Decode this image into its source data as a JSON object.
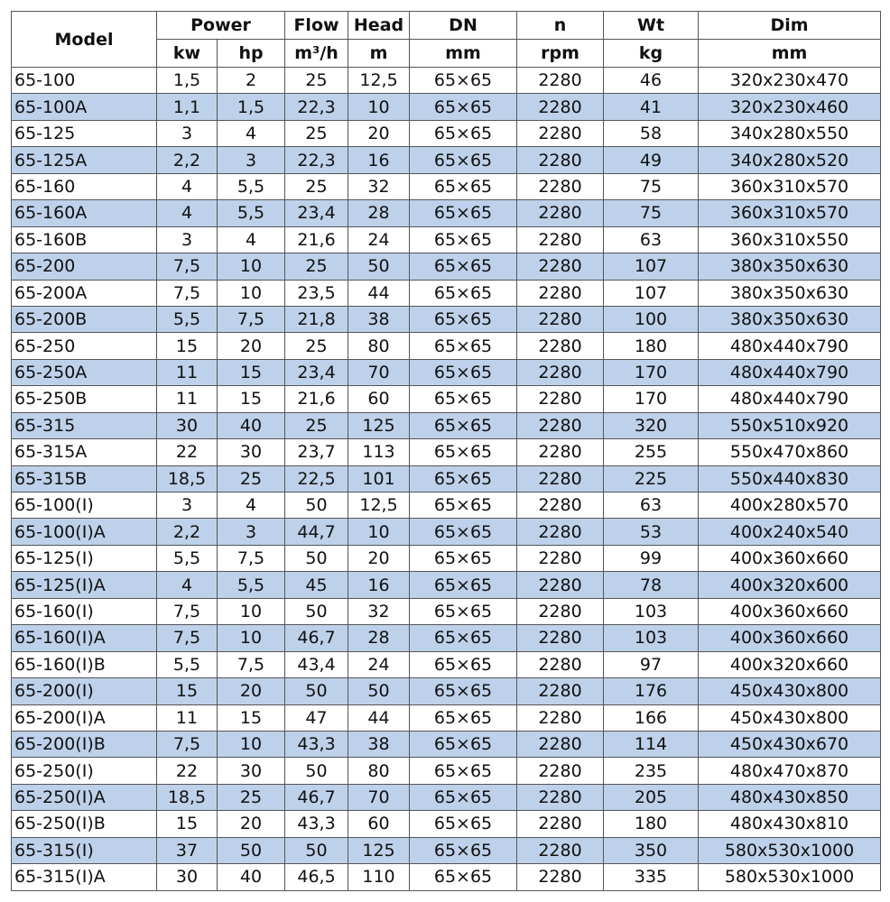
{
  "table": {
    "headers": [
      [
        "Model",
        "Power",
        "Flow",
        "Head",
        "DN",
        "n",
        "Wt",
        "Dim"
      ],
      [
        "kw",
        "hp",
        "m³/h",
        "m",
        "mm",
        "rpm",
        "kg",
        "mm"
      ]
    ],
    "rows": [
      [
        "65-100",
        "1,5",
        "2",
        "25",
        "12,5",
        "65×65",
        "2280",
        "46",
        "320x230x470"
      ],
      [
        "65-100A",
        "1,1",
        "1,5",
        "22,3",
        "10",
        "65×65",
        "2280",
        "41",
        "320x230x460"
      ],
      [
        "65-125",
        "3",
        "4",
        "25",
        "20",
        "65×65",
        "2280",
        "58",
        "340x280x550"
      ],
      [
        "65-125A",
        "2,2",
        "3",
        "22,3",
        "16",
        "65×65",
        "2280",
        "49",
        "340x280x520"
      ],
      [
        "65-160",
        "4",
        "5,5",
        "25",
        "32",
        "65×65",
        "2280",
        "75",
        "360x310x570"
      ],
      [
        "65-160A",
        "4",
        "5,5",
        "23,4",
        "28",
        "65×65",
        "2280",
        "75",
        "360x310x570"
      ],
      [
        "65-160B",
        "3",
        "4",
        "21,6",
        "24",
        "65×65",
        "2280",
        "63",
        "360x310x550"
      ],
      [
        "65-200",
        "7,5",
        "10",
        "25",
        "50",
        "65×65",
        "2280",
        "107",
        "380x350x630"
      ],
      [
        "65-200A",
        "7,5",
        "10",
        "23,5",
        "44",
        "65×65",
        "2280",
        "107",
        "380x350x630"
      ],
      [
        "65-200B",
        "5,5",
        "7,5",
        "21,8",
        "38",
        "65×65",
        "2280",
        "100",
        "380x350x630"
      ],
      [
        "65-250",
        "15",
        "20",
        "25",
        "80",
        "65×65",
        "2280",
        "180",
        "480x440x790"
      ],
      [
        "65-250A",
        "11",
        "15",
        "23,4",
        "70",
        "65×65",
        "2280",
        "170",
        "480x440x790"
      ],
      [
        "65-250B",
        "11",
        "15",
        "21,6",
        "60",
        "65×65",
        "2280",
        "170",
        "480x440x790"
      ],
      [
        "65-315",
        "30",
        "40",
        "25",
        "125",
        "65×65",
        "2280",
        "320",
        "550x510x920"
      ],
      [
        "65-315A",
        "22",
        "30",
        "23,7",
        "113",
        "65×65",
        "2280",
        "255",
        "550x470x860"
      ],
      [
        "65-315B",
        "18,5",
        "25",
        "22,5",
        "101",
        "65×65",
        "2280",
        "225",
        "550x440x830"
      ],
      [
        "65-100(I)",
        "3",
        "4",
        "50",
        "12,5",
        "65×65",
        "2280",
        "63",
        "400x280x570"
      ],
      [
        "65-100(I)A",
        "2,2",
        "3",
        "44,7",
        "10",
        "65×65",
        "2280",
        "53",
        "400x240x540"
      ],
      [
        "65-125(I)",
        "5,5",
        "7,5",
        "50",
        "20",
        "65×65",
        "2280",
        "99",
        "400x360x660"
      ],
      [
        "65-125(I)A",
        "4",
        "5,5",
        "45",
        "16",
        "65×65",
        "2280",
        "78",
        "400x320x600"
      ],
      [
        "65-160(I)",
        "7,5",
        "10",
        "50",
        "32",
        "65×65",
        "2280",
        "103",
        "400x360x660"
      ],
      [
        "65-160(I)A",
        "7,5",
        "10",
        "46,7",
        "28",
        "65×65",
        "2280",
        "103",
        "400x360x660"
      ],
      [
        "65-160(I)B",
        "5,5",
        "7,5",
        "43,4",
        "24",
        "65×65",
        "2280",
        "97",
        "400x320x660"
      ],
      [
        "65-200(I)",
        "15",
        "20",
        "50",
        "50",
        "65×65",
        "2280",
        "176",
        "450x430x800"
      ],
      [
        "65-200(I)A",
        "11",
        "15",
        "47",
        "44",
        "65×65",
        "2280",
        "166",
        "450x430x800"
      ],
      [
        "65-200(I)B",
        "7,5",
        "10",
        "43,3",
        "38",
        "65×65",
        "2280",
        "114",
        "450x430x670"
      ],
      [
        "65-250(I)",
        "22",
        "30",
        "50",
        "80",
        "65×65",
        "2280",
        "235",
        "480x470x870"
      ],
      [
        "65-250(I)A",
        "18,5",
        "25",
        "46,7",
        "70",
        "65×65",
        "2280",
        "205",
        "480x430x850"
      ],
      [
        "65-250(I)B",
        "15",
        "20",
        "43,3",
        "60",
        "65×65",
        "2280",
        "180",
        "480x430x810"
      ],
      [
        "65-315(I)",
        "37",
        "50",
        "50",
        "125",
        "65×65",
        "2280",
        "350",
        "580x530x1000"
      ],
      [
        "65-315(I)A",
        "30",
        "40",
        "46,5",
        "110",
        "65×65",
        "2280",
        "335",
        "580x530x1000"
      ]
    ]
  }
}
